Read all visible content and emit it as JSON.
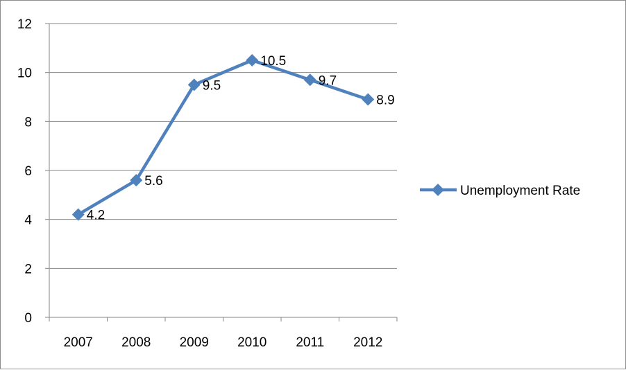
{
  "chart_data": {
    "type": "line",
    "categories": [
      "2007",
      "2008",
      "2009",
      "2010",
      "2011",
      "2012"
    ],
    "series": [
      {
        "name": "Unemployment Rate",
        "values": [
          4.2,
          5.6,
          9.5,
          10.5,
          9.7,
          8.9
        ],
        "color": "#4f81bd",
        "marker": "diamond",
        "data_labels": [
          "4.2",
          "5.6",
          "9.5",
          "10.5",
          "9.7",
          "8.9"
        ]
      }
    ],
    "y_ticks": [
      "0",
      "2",
      "4",
      "6",
      "8",
      "10",
      "12"
    ],
    "ylim": [
      0,
      12
    ],
    "grid": "horizontal",
    "legend_position": "right"
  }
}
